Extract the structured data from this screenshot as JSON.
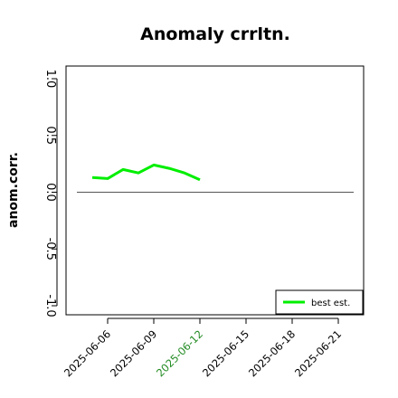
{
  "chart_data": {
    "type": "line",
    "title": "Anomaly crrltn.",
    "xlabel": "",
    "ylabel": "anom.corr.",
    "x_ticks": [
      "2025-06-06",
      "2025-06-09",
      "2025-06-12",
      "2025-06-15",
      "2025-06-18",
      "2025-06-21"
    ],
    "highlighted_x_tick": "2025-06-12",
    "highlight_color": "#228B22",
    "xlim": [
      "2025-06-03",
      "2025-06-22"
    ],
    "ylim": [
      -1.0,
      1.0
    ],
    "y_ticks": [
      "-1.0",
      "-0.5",
      "0.0",
      "0.5",
      "1.0"
    ],
    "reference_line": 0.0,
    "series": [
      {
        "name": "best est.",
        "color": "#00ee00",
        "x": [
          "2025-06-05",
          "2025-06-06",
          "2025-06-07",
          "2025-06-08",
          "2025-06-09",
          "2025-06-10",
          "2025-06-11",
          "2025-06-12"
        ],
        "y": [
          0.13,
          0.12,
          0.2,
          0.17,
          0.24,
          0.21,
          0.17,
          0.11
        ]
      }
    ],
    "legend_position": "bottom-right",
    "grid": false
  }
}
